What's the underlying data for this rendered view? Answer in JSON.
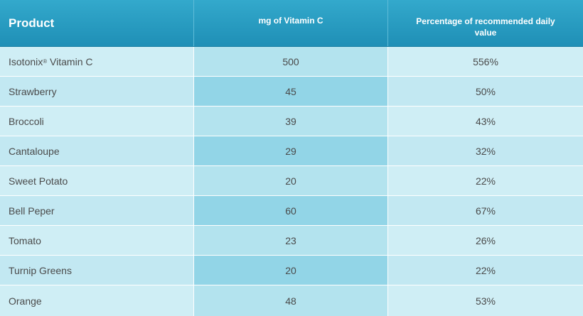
{
  "table": {
    "headers": {
      "product": "Product",
      "mg": "mg of Vitamin C",
      "pct": "Percentage of recommended daily value"
    },
    "rows": [
      {
        "product": "Isotonix",
        "registered": "®",
        "product_suffix": " Vitamin C",
        "mg": "500",
        "pct": "556%"
      },
      {
        "product": "Strawberry",
        "mg": "45",
        "pct": "50%"
      },
      {
        "product": "Broccoli",
        "mg": "39",
        "pct": "43%"
      },
      {
        "product": "Cantaloupe",
        "mg": "29",
        "pct": "32%"
      },
      {
        "product": "Sweet Potato",
        "mg": "20",
        "pct": "22%"
      },
      {
        "product": "Bell Peper",
        "mg": "60",
        "pct": "67%"
      },
      {
        "product": "Tomato",
        "mg": "23",
        "pct": "26%"
      },
      {
        "product": "Turnip Greens",
        "mg": "20",
        "pct": "22%"
      },
      {
        "product": "Orange",
        "mg": "48",
        "pct": "53%"
      }
    ]
  },
  "colors": {
    "header_top": "#33a9cc",
    "header_bottom": "#1f8fb6",
    "row_light": "#cfeef5",
    "row_mid": "#b3e3ee",
    "row_alt_mid": "#92d5e7",
    "text": "#4a4a4a"
  }
}
